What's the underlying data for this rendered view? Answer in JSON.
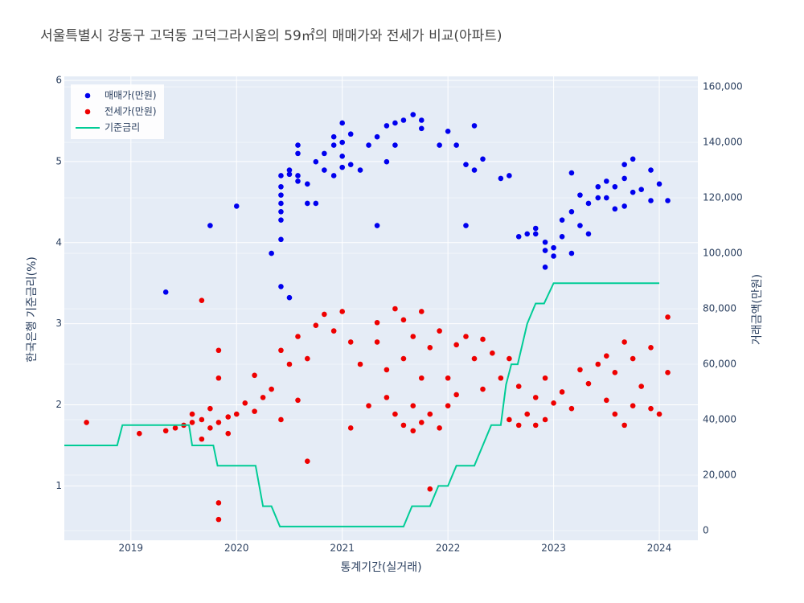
{
  "chart_data": {
    "type": "scatter",
    "title": "서울특별시 강동구 고덕동 고덕그라시움의 59㎡의 매매가와 전세가 비교(아파트)",
    "x_label": "통계기간(실거래)",
    "y_label": "한국은행 기준금리(%)",
    "y2_label": "거래금액(만원)",
    "xlim": [
      2018.37,
      2024.365
    ],
    "xticks": [
      2019,
      2020,
      2021,
      2022,
      2023,
      2024
    ],
    "ylim": [
      0.33,
      6.05
    ],
    "yticks": [
      1,
      2,
      3,
      4,
      5,
      6
    ],
    "y2lim": [
      -3500,
      163800
    ],
    "y2ticks": [
      0,
      {
        "value": 20000,
        "label": "20,000"
      },
      {
        "value": 40000,
        "label": "40,000"
      },
      {
        "value": 60000,
        "label": "60,000"
      },
      {
        "value": 80000,
        "label": "80,000"
      },
      {
        "value": 100000,
        "label": "100,000"
      },
      {
        "value": 120000,
        "label": "120,000"
      },
      {
        "value": 140000,
        "label": "140,000"
      },
      {
        "value": 160000,
        "label": "160,000"
      }
    ],
    "grid": true,
    "legend": "top-left",
    "series": [
      {
        "name": "매매가(만원)",
        "color": "#0000ee",
        "mode": "markers",
        "axis": "y2",
        "x": [
          2019.33,
          2019.75,
          2020.0,
          2020.33,
          2020.42,
          2020.42,
          2020.42,
          2020.42,
          2020.42,
          2020.42,
          2020.42,
          2020.42,
          2020.5,
          2020.5,
          2020.5,
          2020.58,
          2020.58,
          2020.58,
          2020.58,
          2020.67,
          2020.67,
          2020.75,
          2020.75,
          2020.83,
          2020.83,
          2020.92,
          2020.92,
          2020.92,
          2021.0,
          2021.0,
          2021.0,
          2021.0,
          2021.08,
          2021.08,
          2021.17,
          2021.25,
          2021.33,
          2021.33,
          2021.42,
          2021.42,
          2021.5,
          2021.5,
          2021.58,
          2021.67,
          2021.75,
          2021.75,
          2021.92,
          2022.0,
          2022.08,
          2022.17,
          2022.17,
          2022.25,
          2022.25,
          2022.33,
          2022.5,
          2022.58,
          2022.67,
          2022.75,
          2022.83,
          2022.83,
          2022.92,
          2022.92,
          2022.92,
          2023.0,
          2023.0,
          2023.08,
          2023.08,
          2023.17,
          2023.17,
          2023.17,
          2023.25,
          2023.25,
          2023.33,
          2023.33,
          2023.42,
          2023.42,
          2023.5,
          2023.5,
          2023.58,
          2023.58,
          2023.67,
          2023.67,
          2023.67,
          2023.75,
          2023.75,
          2023.83,
          2023.92,
          2023.92,
          2024.0,
          2024.08
        ],
        "values": [
          86000,
          110000,
          117000,
          100000,
          88000,
          105000,
          112000,
          115000,
          118000,
          121000,
          124000,
          128000,
          84000,
          128500,
          130000,
          126000,
          128000,
          136000,
          139000,
          118000,
          125000,
          118000,
          133000,
          130000,
          136000,
          128000,
          139000,
          142000,
          131000,
          135000,
          140000,
          147000,
          132000,
          143000,
          130000,
          139000,
          110000,
          142000,
          133000,
          146000,
          139000,
          147000,
          148000,
          150000,
          145000,
          148000,
          139000,
          144000,
          139000,
          110000,
          132000,
          130000,
          146000,
          134000,
          127000,
          128000,
          106000,
          107000,
          107000,
          109000,
          95000,
          101000,
          104000,
          99000,
          102000,
          106000,
          112000,
          100000,
          115000,
          129000,
          110000,
          121000,
          107000,
          118000,
          120000,
          124000,
          120000,
          126000,
          116000,
          124000,
          117000,
          127000,
          132000,
          122000,
          134000,
          123000,
          119000,
          130000,
          125000,
          119000
        ]
      },
      {
        "name": "전세가(만원)",
        "color": "#ee0000",
        "mode": "markers",
        "axis": "y2",
        "x": [
          2018.58,
          2019.08,
          2019.33,
          2019.42,
          2019.5,
          2019.58,
          2019.58,
          2019.67,
          2019.67,
          2019.67,
          2019.75,
          2019.75,
          2019.83,
          2019.83,
          2019.83,
          2019.83,
          2019.83,
          2019.92,
          2019.92,
          2020.0,
          2020.08,
          2020.17,
          2020.17,
          2020.25,
          2020.33,
          2020.42,
          2020.42,
          2020.5,
          2020.58,
          2020.58,
          2020.67,
          2020.67,
          2020.75,
          2020.83,
          2020.92,
          2021.0,
          2021.08,
          2021.08,
          2021.17,
          2021.25,
          2021.33,
          2021.33,
          2021.42,
          2021.42,
          2021.5,
          2021.5,
          2021.58,
          2021.58,
          2021.58,
          2021.67,
          2021.67,
          2021.67,
          2021.75,
          2021.75,
          2021.75,
          2021.83,
          2021.83,
          2021.83,
          2021.92,
          2021.92,
          2022.0,
          2022.0,
          2022.08,
          2022.08,
          2022.17,
          2022.25,
          2022.33,
          2022.33,
          2022.42,
          2022.5,
          2022.58,
          2022.58,
          2022.67,
          2022.67,
          2022.75,
          2022.83,
          2022.83,
          2022.92,
          2022.92,
          2023.0,
          2023.08,
          2023.17,
          2023.25,
          2023.33,
          2023.42,
          2023.5,
          2023.5,
          2023.58,
          2023.58,
          2023.67,
          2023.67,
          2023.75,
          2023.75,
          2023.83,
          2023.92,
          2023.92,
          2024.0,
          2024.08,
          2024.08
        ],
        "values": [
          39000,
          35000,
          36000,
          37000,
          38000,
          39000,
          42000,
          83000,
          33000,
          40000,
          37000,
          44000,
          4000,
          10000,
          65000,
          55000,
          39000,
          41000,
          35000,
          42000,
          46000,
          43000,
          56000,
          48000,
          51000,
          40000,
          65000,
          60000,
          47000,
          70000,
          25000,
          62000,
          74000,
          78000,
          72000,
          79000,
          37000,
          68000,
          60000,
          45000,
          68000,
          75000,
          48000,
          58000,
          80000,
          42000,
          38000,
          62000,
          76000,
          36000,
          45000,
          70000,
          39000,
          79000,
          55000,
          15000,
          42000,
          66000,
          37000,
          72000,
          45000,
          55000,
          49000,
          67000,
          70000,
          62000,
          51000,
          69000,
          64000,
          55000,
          40000,
          62000,
          38000,
          52000,
          42000,
          38000,
          48000,
          40000,
          55000,
          46000,
          50000,
          44000,
          58000,
          53000,
          60000,
          47000,
          63000,
          42000,
          57000,
          38000,
          68000,
          45000,
          62000,
          52000,
          44000,
          66000,
          42000,
          57000,
          77000
        ]
      },
      {
        "name": "기준금리",
        "color": "#00cc96",
        "mode": "lines",
        "axis": "y",
        "x": [
          2018.37,
          2018.87,
          2018.92,
          2019.55,
          2019.58,
          2019.78,
          2019.82,
          2020.18,
          2020.25,
          2020.33,
          2020.41,
          2021.58,
          2021.66,
          2021.83,
          2021.91,
          2022.0,
          2022.08,
          2022.25,
          2022.33,
          2022.41,
          2022.5,
          2022.55,
          2022.6,
          2022.66,
          2022.75,
          2022.83,
          2022.91,
          2023.0,
          2023.08,
          2024.0
        ],
        "values": [
          1.5,
          1.5,
          1.75,
          1.75,
          1.5,
          1.5,
          1.25,
          1.25,
          0.75,
          0.75,
          0.5,
          0.5,
          0.75,
          0.75,
          1.0,
          1.0,
          1.25,
          1.25,
          1.5,
          1.75,
          1.75,
          2.25,
          2.5,
          2.5,
          3.0,
          3.25,
          3.25,
          3.5,
          3.5,
          3.5
        ]
      }
    ]
  }
}
